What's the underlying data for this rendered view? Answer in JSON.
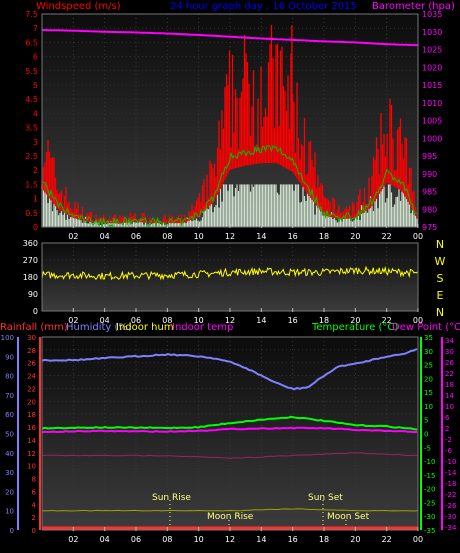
{
  "colors": {
    "wind": "#ff0000",
    "gust_fill": "#e8ffe8",
    "wind_avg": "#00c000",
    "barometer": "#ff00ff",
    "title": "#0000ff",
    "wind_dir": "#ffff00",
    "compass": "#ffff00",
    "rain": "#ff3030",
    "humidity": "#8080ff",
    "indoor_hum": "#ffff00",
    "indoor_temp": "#ff00ff",
    "temperature": "#00ff00",
    "dew_point": "#ff00ff",
    "rain_axis": "#ff3030",
    "astro": "#ffff80"
  },
  "panel1": {
    "title": "24 hour graph day , 16 October 2015",
    "left_label": "Windspeed (m/s)",
    "right_label": "Barometer (hpa)",
    "left_ticks": [
      "7.5",
      "7",
      "6.5",
      "6",
      "5.5",
      "5",
      "4.5",
      "4",
      "3.5",
      "3",
      "2.5",
      "2",
      "1.5",
      "1",
      "0.5",
      "0"
    ],
    "right_ticks": [
      "1035",
      "1030",
      "1025",
      "1020",
      "1015",
      "1010",
      "1005",
      "1000",
      "995",
      "990",
      "985",
      "980",
      "975"
    ],
    "x_ticks": [
      "02",
      "04",
      "06",
      "08",
      "10",
      "12",
      "14",
      "16",
      "18",
      "20",
      "22",
      "00"
    ]
  },
  "panel2": {
    "left_ticks": [
      "360",
      "270",
      "180",
      "90",
      "0"
    ],
    "compass": [
      "N",
      "W",
      "S",
      "E",
      "N"
    ],
    "x_ticks": [
      "02",
      "04",
      "06",
      "08",
      "10",
      "12",
      "14",
      "16",
      "18",
      "20",
      "22",
      "00"
    ]
  },
  "panel3": {
    "labels": {
      "rain": "Rainfall (mm)",
      "humidity": "Humidity (%)",
      "indoor_hum": "Indoor hum",
      "indoor_temp": "Indoor temp",
      "temperature": "Temperature (°C)",
      "dew_point": "Dew Point (°C)"
    },
    "humidity_ticks": [
      "100",
      "90",
      "80",
      "70",
      "60",
      "50",
      "40",
      "30",
      "20",
      "10",
      "0"
    ],
    "rain_ticks": [
      "30",
      "28",
      "26",
      "24",
      "22",
      "20",
      "18",
      "16",
      "14",
      "12",
      "10",
      "8",
      "6",
      "4",
      "2",
      "0"
    ],
    "temp_ticks": [
      "35",
      "30",
      "25",
      "20",
      "15",
      "10",
      "5",
      "0",
      "-5",
      "-10",
      "-15",
      "-20",
      "-25",
      "-30",
      "-35"
    ],
    "dew_ticks": [
      "34",
      "30",
      "26",
      "22",
      "18",
      "14",
      "10",
      "6",
      "2",
      "-2",
      "-6",
      "-10",
      "-14",
      "-18",
      "-22",
      "-26",
      "-30",
      "-34"
    ],
    "x_ticks": [
      "02",
      "04",
      "06",
      "08",
      "10",
      "12",
      "14",
      "16",
      "18",
      "20",
      "22",
      "00"
    ],
    "astro": {
      "sun_rise": "Sun Rise",
      "sun_set": "Sun Set",
      "moon_rise": "Moon Rise",
      "moon_set": "Moon Set"
    }
  },
  "chart_data": [
    {
      "type": "line",
      "title": "24 hour graph day , 16 October 2015",
      "xlabel": "",
      "ylabel": "Windspeed (m/s)",
      "y2label": "Barometer (hpa)",
      "x_range_hours": [
        0,
        24
      ],
      "ylim": [
        0,
        7.5
      ],
      "y2lim": [
        975,
        1035
      ],
      "series": [
        {
          "name": "Windspeed (m/s)",
          "x": [
            0,
            1,
            2,
            3,
            4,
            5,
            6,
            7,
            8,
            9,
            10,
            11,
            12,
            13,
            14,
            15,
            16,
            17,
            18,
            19,
            20,
            21,
            22,
            23,
            24
          ],
          "values": [
            3.0,
            1.4,
            0.7,
            0.4,
            0.3,
            0.3,
            0.4,
            0.3,
            0.3,
            0.3,
            0.8,
            2.0,
            4.5,
            4.8,
            5.0,
            5.0,
            4.3,
            2.5,
            0.9,
            0.6,
            0.7,
            1.5,
            3.5,
            2.8,
            0.5
          ]
        },
        {
          "name": "Barometer (hpa)",
          "x": [
            0,
            2,
            4,
            6,
            8,
            10,
            12,
            14,
            16,
            18,
            20,
            22,
            24
          ],
          "values": [
            1030.5,
            1030.3,
            1030.0,
            1029.8,
            1029.5,
            1029.1,
            1028.6,
            1028.1,
            1027.7,
            1027.3,
            1027.0,
            1026.5,
            1026.2
          ]
        }
      ]
    },
    {
      "type": "line",
      "title": "",
      "ylabel": "",
      "x_range_hours": [
        0,
        24
      ],
      "ylim": [
        0,
        360
      ],
      "series": [
        {
          "name": "",
          "x": [
            0,
            2,
            4,
            6,
            8,
            10,
            12,
            14,
            16,
            18,
            20,
            22,
            24
          ],
          "values": [
            190,
            190,
            185,
            188,
            190,
            195,
            205,
            210,
            205,
            205,
            215,
            210,
            200
          ]
        }
      ]
    },
    {
      "type": "line",
      "title": "",
      "x_range_hours": [
        0,
        24
      ],
      "ylim_humidity": [
        0,
        100
      ],
      "ylim_temperature": [
        -35,
        35
      ],
      "series": [
        {
          "name": "Humidity (%)",
          "x": [
            0,
            2,
            4,
            6,
            8,
            10,
            11,
            12,
            13,
            14,
            15,
            16,
            17,
            18,
            19,
            20,
            21,
            22,
            23,
            24
          ],
          "values": [
            88,
            88,
            89,
            90,
            91,
            90,
            89,
            87,
            84,
            80,
            76,
            73,
            74,
            80,
            85,
            86,
            88,
            90,
            91,
            94
          ]
        },
        {
          "name": "Temperature (°C)",
          "x": [
            0,
            2,
            4,
            6,
            8,
            10,
            12,
            14,
            16,
            18,
            20,
            22,
            24
          ],
          "values": [
            1.9,
            2.1,
            2.2,
            2.1,
            2.0,
            2.3,
            3.8,
            5.0,
            6.0,
            4.6,
            3.0,
            2.6,
            1.5
          ]
        },
        {
          "name": "Dew Point (°C)",
          "x": [
            0,
            2,
            4,
            6,
            8,
            10,
            12,
            14,
            16,
            18,
            20,
            22,
            24
          ],
          "values": [
            0.5,
            0.8,
            0.9,
            0.8,
            0.7,
            1.0,
            1.6,
            1.8,
            2.0,
            1.9,
            1.3,
            0.9,
            0.6
          ]
        },
        {
          "name": "Indoor temp",
          "x": [
            0,
            4,
            8,
            12,
            16,
            20,
            24
          ],
          "values": [
            -8,
            -8,
            -8,
            -9,
            -8,
            -7,
            -8
          ]
        },
        {
          "name": "Indoor hum",
          "x": [
            0,
            4,
            8,
            12,
            16,
            20,
            24
          ],
          "values": [
            10,
            10,
            10,
            10,
            11,
            10,
            10
          ]
        },
        {
          "name": "Rainfall (mm)",
          "x": [
            0,
            24
          ],
          "values": [
            0,
            0
          ]
        }
      ]
    }
  ]
}
